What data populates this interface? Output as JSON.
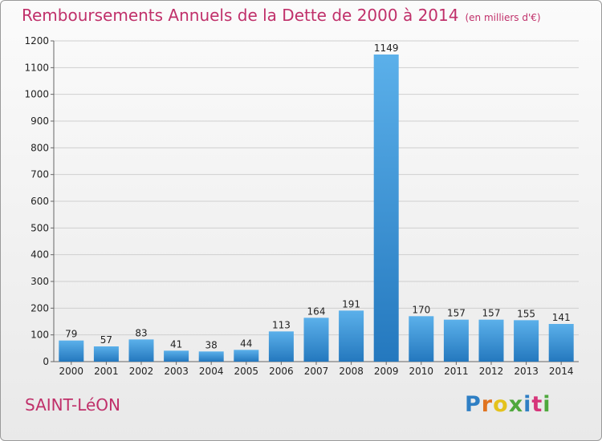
{
  "header": {
    "title": "Remboursements Annuels de la Dette de 2000 à 2014",
    "unit": "(en milliers d'€)"
  },
  "commune": "SAINT-LéON",
  "logo": {
    "text": "Proxiti",
    "letter_colors": [
      "#2f7fc4",
      "#e0731f",
      "#e4c21c",
      "#4fa83d",
      "#2f7fc4",
      "#d6357a",
      "#4fa83d"
    ]
  },
  "colors": {
    "bar_light": "#5bb0ea",
    "bar_dark": "#2478be",
    "title": "#c0306a",
    "grid": "#cfcfcf",
    "axis_text": "#222222"
  },
  "chart_data": {
    "type": "bar",
    "title": "Remboursements Annuels de la Dette de 2000 à 2014",
    "subtitle": "(en milliers d'€)",
    "xlabel": "",
    "ylabel": "",
    "categories": [
      "2000",
      "2001",
      "2002",
      "2003",
      "2004",
      "2005",
      "2006",
      "2007",
      "2008",
      "2009",
      "2010",
      "2011",
      "2012",
      "2013",
      "2014"
    ],
    "values": [
      79,
      57,
      83,
      41,
      38,
      44,
      113,
      164,
      191,
      1149,
      170,
      157,
      157,
      155,
      141
    ],
    "ylim": [
      0,
      1200
    ],
    "yticks": [
      0,
      100,
      200,
      300,
      400,
      500,
      600,
      700,
      800,
      900,
      1000,
      1100,
      1200
    ],
    "grid": true,
    "data_labels": true
  }
}
